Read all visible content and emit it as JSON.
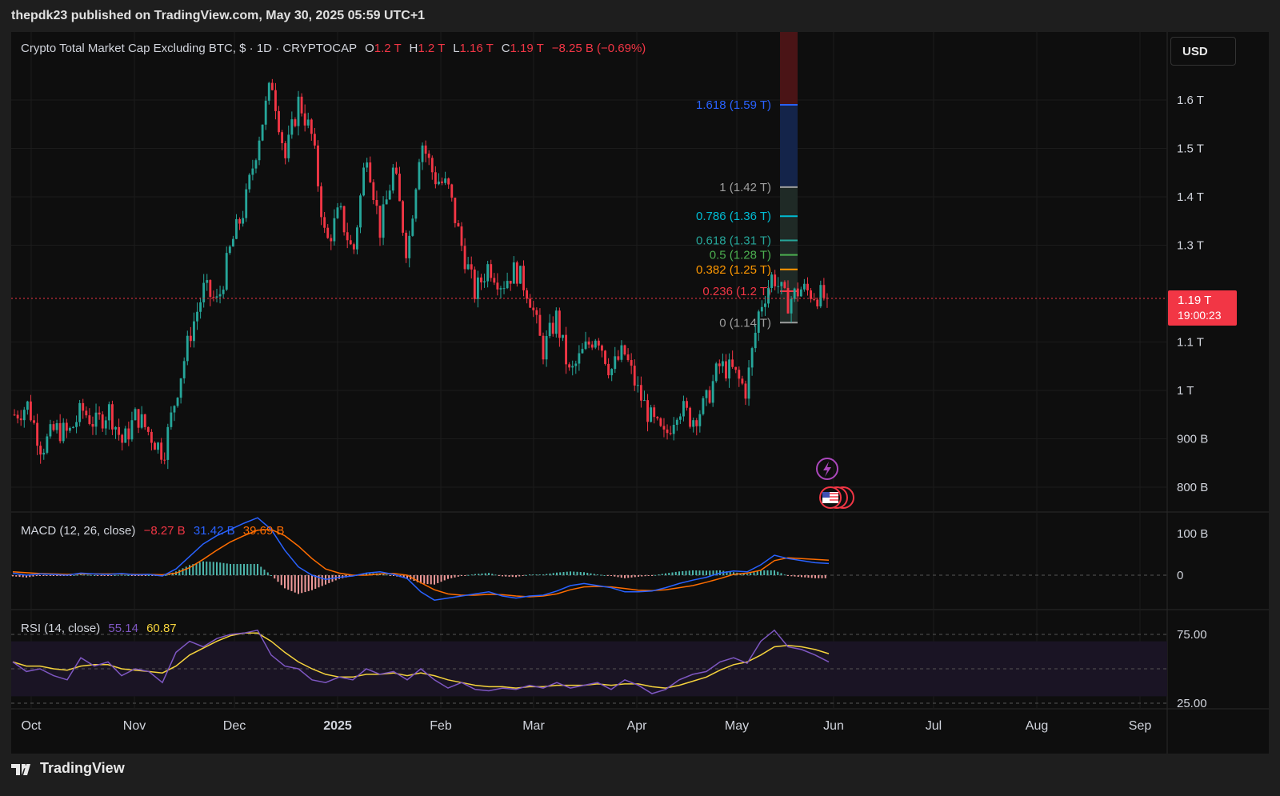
{
  "publisher": {
    "text": "thepdk23 published on TradingView.com, May 30, 2025 05:59 UTC+1"
  },
  "legend": {
    "symbol": "Crypto Total Market Cap Excluding BTC, $ · 1D · CRYPTOCAP",
    "o_label": "O",
    "o_value": "1.2 T",
    "h_label": "H",
    "h_value": "1.2 T",
    "l_label": "L",
    "l_value": "1.16 T",
    "c_label": "C",
    "c_value": "1.19 T",
    "change": "−8.25 B (−0.69%)"
  },
  "currency_button": "USD",
  "last_price": {
    "value": "1.19 T",
    "countdown": "19:00:23",
    "price": 1.19,
    "color": "#f23645"
  },
  "colors": {
    "up": "#26a69a",
    "down": "#f23645",
    "macd": "#2962ff",
    "signal": "#ff6d00",
    "rsi": "#7e57c2",
    "rsi_ma": "#f5d33d",
    "background": "#0e0e0e"
  },
  "macd": {
    "label": "MACD (12, 26, close)",
    "hist": "−8.27 B",
    "macd": "31.42 B",
    "signal": "39.69 B",
    "ticks": [
      "100 B",
      "0"
    ]
  },
  "rsi": {
    "label": "RSI (14, close)",
    "rsi": "55.14",
    "ma": "60.87",
    "ticks": [
      "75.00",
      "25.00"
    ]
  },
  "footer": {
    "brand": "TradingView"
  },
  "icons": {
    "event_icon": "lightning-icon",
    "flag_icon": "us-flag-icon",
    "logo": "tradingview-logo-icon"
  },
  "chart_data": {
    "type": "candlestick",
    "title": "Crypto Total Market Cap Excluding BTC",
    "y_axis": {
      "ticks": [
        {
          "label": "1.6 T",
          "value": 1.6
        },
        {
          "label": "1.5 T",
          "value": 1.5
        },
        {
          "label": "1.4 T",
          "value": 1.4
        },
        {
          "label": "1.3 T",
          "value": 1.3
        },
        {
          "label": "1.1 T",
          "value": 1.1
        },
        {
          "label": "1 T",
          "value": 1.0
        },
        {
          "label": "900 B",
          "value": 0.9
        },
        {
          "label": "800 B",
          "value": 0.8
        }
      ],
      "unit": "T",
      "ylim": [
        0.77,
        1.7
      ]
    },
    "x_axis": {
      "ticks": [
        {
          "label": "Oct",
          "bold": false
        },
        {
          "label": "Nov",
          "bold": false
        },
        {
          "label": "Dec",
          "bold": false
        },
        {
          "label": "2025",
          "bold": true
        },
        {
          "label": "Feb",
          "bold": false
        },
        {
          "label": "Mar",
          "bold": false
        },
        {
          "label": "Apr",
          "bold": false
        },
        {
          "label": "May",
          "bold": false
        },
        {
          "label": "Jun",
          "bold": false
        },
        {
          "label": "Jul",
          "bold": false
        },
        {
          "label": "Aug",
          "bold": false
        },
        {
          "label": "Sep",
          "bold": false
        }
      ]
    },
    "price_path": [
      0.95,
      0.97,
      0.88,
      0.92,
      0.91,
      0.96,
      0.93,
      0.96,
      0.89,
      0.95,
      0.91,
      0.87,
      1.0,
      1.12,
      1.21,
      1.18,
      1.3,
      1.38,
      1.52,
      1.64,
      1.48,
      1.6,
      1.52,
      1.3,
      1.37,
      1.28,
      1.5,
      1.33,
      1.46,
      1.28,
      1.52,
      1.44,
      1.42,
      1.3,
      1.2,
      1.26,
      1.22,
      1.25,
      1.2,
      1.08,
      1.15,
      1.03,
      1.08,
      1.12,
      1.04,
      1.08,
      1.0,
      0.94,
      0.9,
      0.97,
      0.94,
      0.97,
      1.05,
      1.04,
      1.0,
      1.17,
      1.24,
      1.18,
      1.21,
      1.2,
      1.19
    ],
    "fibonacci": {
      "levels": [
        {
          "label": "1.618 (1.59 T)",
          "price": 1.59,
          "color": "#2962ff"
        },
        {
          "label": "1 (1.42 T)",
          "price": 1.42,
          "color": "#9e9e9e"
        },
        {
          "label": "0.786 (1.36 T)",
          "price": 1.36,
          "color": "#00bcd4"
        },
        {
          "label": "0.618 (1.31 T)",
          "price": 1.31,
          "color": "#26a69a"
        },
        {
          "label": "0.5 (1.28 T)",
          "price": 1.28,
          "color": "#4caf50"
        },
        {
          "label": "0.382 (1.25 T)",
          "price": 1.25,
          "color": "#ff9800"
        },
        {
          "label": "0.236 (1.2 T)",
          "price": 1.205,
          "color": "#f23645"
        },
        {
          "label": "0 (1.14 T)",
          "price": 1.14,
          "color": "#9e9e9e"
        }
      ]
    },
    "macd_series": {
      "macd": [
        5,
        0,
        3,
        2,
        0,
        5,
        3,
        2,
        4,
        1,
        2,
        -2,
        15,
        45,
        75,
        95,
        110,
        125,
        138,
        110,
        60,
        20,
        0,
        -10,
        -5,
        -2,
        5,
        8,
        2,
        -8,
        -40,
        -60,
        -55,
        -50,
        -45,
        -40,
        -50,
        -55,
        -50,
        -48,
        -38,
        -25,
        -20,
        -25,
        -30,
        -40,
        -40,
        -38,
        -30,
        -20,
        -12,
        -5,
        5,
        10,
        8,
        25,
        48,
        40,
        35,
        30,
        28
      ],
      "signal": [
        8,
        6,
        4,
        3,
        2,
        3,
        3,
        3,
        3,
        2,
        2,
        1,
        5,
        18,
        38,
        60,
        80,
        95,
        108,
        110,
        95,
        70,
        40,
        15,
        5,
        0,
        0,
        3,
        4,
        0,
        -18,
        -35,
        -45,
        -48,
        -48,
        -46,
        -47,
        -50,
        -52,
        -50,
        -45,
        -35,
        -28,
        -27,
        -28,
        -32,
        -36,
        -37,
        -35,
        -30,
        -25,
        -17,
        -8,
        2,
        5,
        12,
        35,
        42,
        40,
        38,
        36
      ]
    },
    "rsi_series": {
      "rsi": [
        55,
        48,
        50,
        45,
        42,
        58,
        52,
        55,
        45,
        50,
        48,
        40,
        62,
        70,
        66,
        72,
        75,
        76,
        78,
        60,
        52,
        50,
        42,
        40,
        44,
        42,
        50,
        46,
        48,
        42,
        50,
        42,
        36,
        40,
        35,
        34,
        36,
        35,
        38,
        36,
        40,
        36,
        38,
        40,
        35,
        42,
        38,
        32,
        35,
        42,
        46,
        48,
        55,
        58,
        54,
        70,
        78,
        66,
        64,
        60,
        55
      ],
      "ma": [
        55,
        52,
        52,
        50,
        49,
        52,
        53,
        53,
        50,
        49,
        48,
        47,
        52,
        60,
        65,
        70,
        74,
        76,
        76,
        70,
        62,
        55,
        50,
        46,
        44,
        44,
        46,
        46,
        47,
        45,
        47,
        45,
        42,
        40,
        38,
        37,
        37,
        36,
        37,
        37,
        38,
        38,
        38,
        39,
        38,
        39,
        39,
        37,
        36,
        38,
        41,
        44,
        49,
        53,
        55,
        60,
        66,
        67,
        66,
        64,
        61
      ],
      "ylim": [
        20,
        82
      ],
      "band": [
        30,
        70
      ]
    }
  }
}
